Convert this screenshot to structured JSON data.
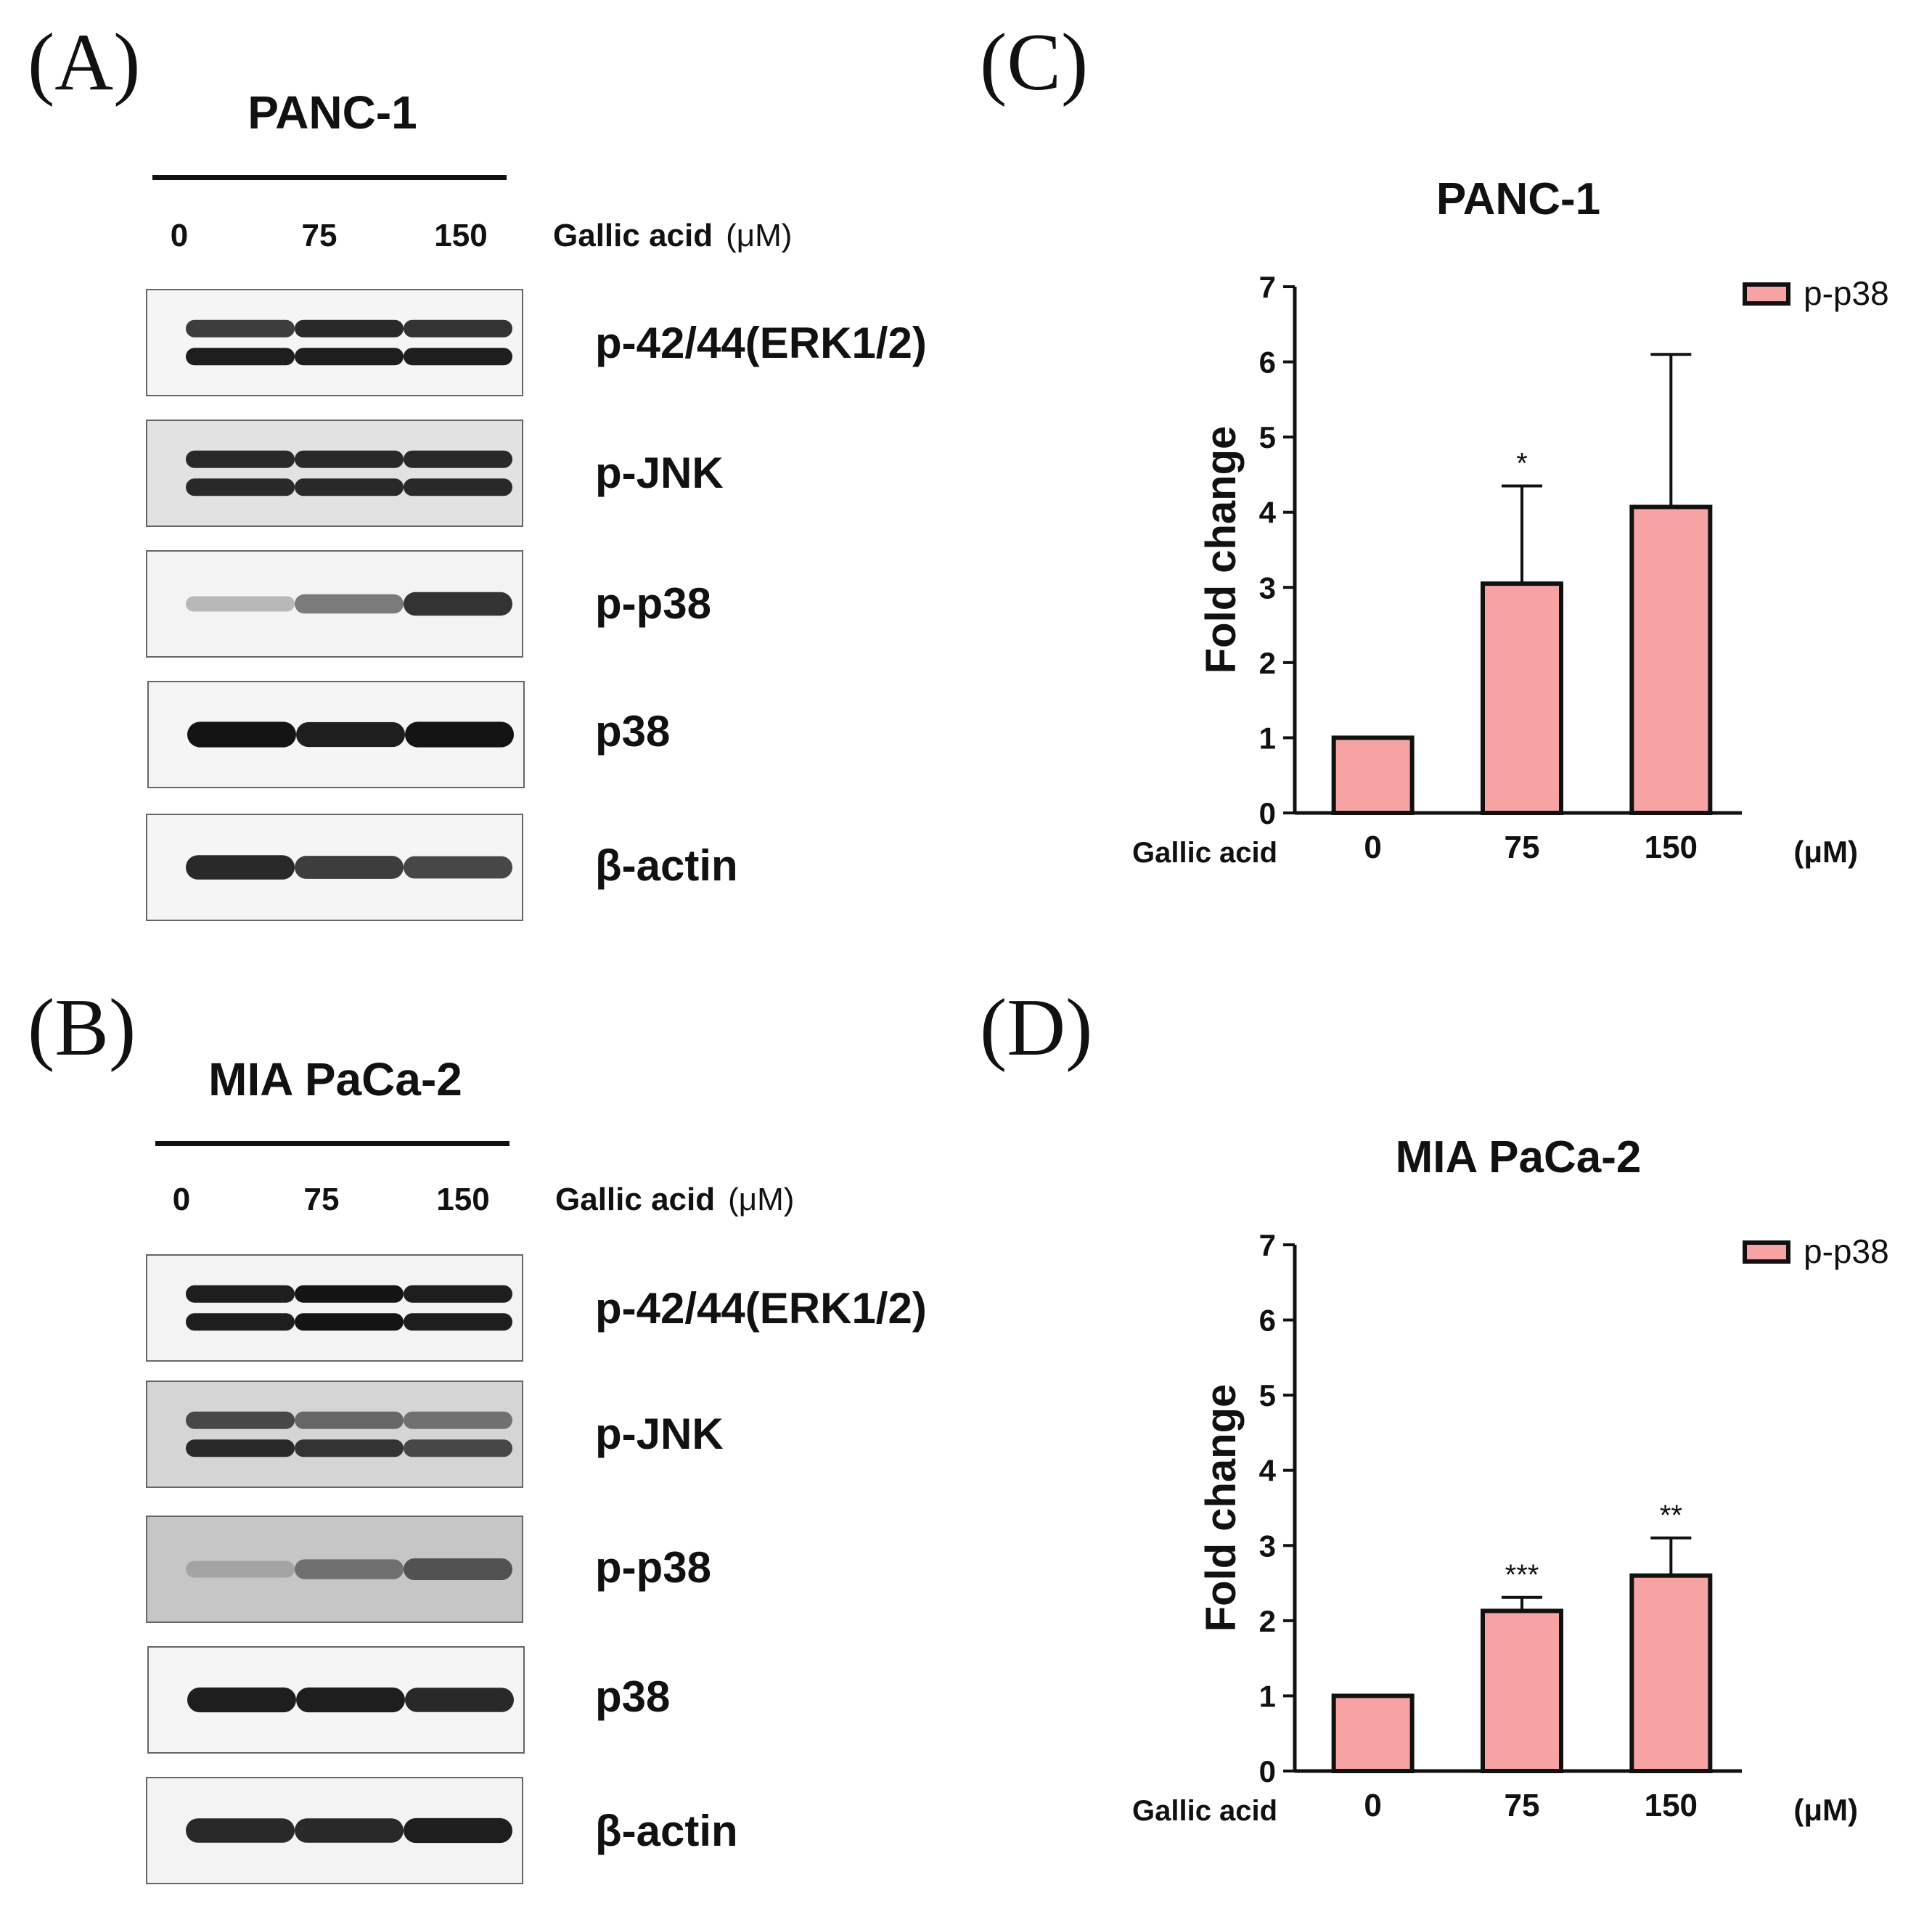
{
  "panels": {
    "A": "(A)",
    "B": "(B)",
    "C": "(C)",
    "D": "(D)"
  },
  "blots": [
    {
      "cell_line": "PANC-1",
      "lanes": [
        "0",
        "75",
        "150"
      ],
      "treatment": "Gallic acid",
      "unit": "(μM)",
      "proteins": [
        "p-42/44(ERK1/2)",
        "p-JNK",
        "p-p38",
        "p38",
        "β-actin"
      ]
    },
    {
      "cell_line": "MIA PaCa-2",
      "lanes": [
        "0",
        "75",
        "150"
      ],
      "treatment": "Gallic acid",
      "unit": "(μM)",
      "proteins": [
        "p-42/44(ERK1/2)",
        "p-JNK",
        "p-p38",
        "p38",
        "β-actin"
      ]
    }
  ],
  "chart_data": [
    {
      "type": "bar",
      "title": "PANC-1",
      "ylabel": "Fold change",
      "xlabel": "Gallic acid",
      "x_unit": "(μM)",
      "categories": [
        "0",
        "75",
        "150"
      ],
      "series": [
        {
          "name": "p-p38",
          "values": [
            1.0,
            3.05,
            4.07
          ],
          "error": [
            0,
            1.3,
            2.03
          ]
        }
      ],
      "significance": [
        "",
        "*",
        ""
      ],
      "ylim": [
        0,
        7
      ],
      "yticks": [
        0,
        1,
        2,
        3,
        4,
        5,
        6,
        7
      ],
      "legend": "top-right",
      "bar_color": "#f7a3a3",
      "edge_color": "#111111"
    },
    {
      "type": "bar",
      "title": "MIA PaCa-2",
      "ylabel": "Fold change",
      "xlabel": "Gallic acid",
      "x_unit": "(μM)",
      "categories": [
        "0",
        "75",
        "150"
      ],
      "series": [
        {
          "name": "p-p38",
          "values": [
            1.0,
            2.13,
            2.6
          ],
          "error": [
            0,
            0.18,
            0.5
          ]
        }
      ],
      "significance": [
        "",
        "***",
        "**"
      ],
      "ylim": [
        0,
        7
      ],
      "yticks": [
        0,
        1,
        2,
        3,
        4,
        5,
        6,
        7
      ],
      "legend": "top-right",
      "bar_color": "#f7a3a3",
      "edge_color": "#111111"
    }
  ],
  "blot_appearance": [
    [
      {
        "bg": "#f5f5f5",
        "bands": [
          [
            0.8,
            0.9,
            0.85
          ],
          [
            0.95,
            0.95,
            0.95
          ]
        ]
      },
      {
        "bg": "#e2e2e2",
        "bands": [
          [
            0.9,
            0.9,
            0.9
          ],
          [
            0.9,
            0.9,
            0.9
          ]
        ]
      },
      {
        "bg": "#f3f3f3",
        "bands": [
          [
            0.2,
            0.5,
            0.85
          ]
        ]
      },
      {
        "bg": "#f5f5f5",
        "bands": [
          [
            1.0,
            0.95,
            1.0
          ]
        ]
      },
      {
        "bg": "#f5f5f5",
        "bands": [
          [
            0.9,
            0.8,
            0.75
          ]
        ]
      }
    ],
    [
      {
        "bg": "#f3f3f3",
        "bands": [
          [
            0.95,
            1.0,
            0.95
          ],
          [
            0.95,
            1.0,
            0.95
          ]
        ]
      },
      {
        "bg": "#d5d5d5",
        "bands": [
          [
            0.75,
            0.6,
            0.55
          ],
          [
            0.9,
            0.85,
            0.75
          ]
        ]
      },
      {
        "bg": "#c6c6c6",
        "bands": [
          [
            0.3,
            0.55,
            0.7
          ]
        ]
      },
      {
        "bg": "#f5f5f5",
        "bands": [
          [
            0.95,
            0.95,
            0.9
          ]
        ]
      },
      {
        "bg": "#f3f3f3",
        "bands": [
          [
            0.9,
            0.9,
            0.95
          ]
        ]
      }
    ]
  ]
}
